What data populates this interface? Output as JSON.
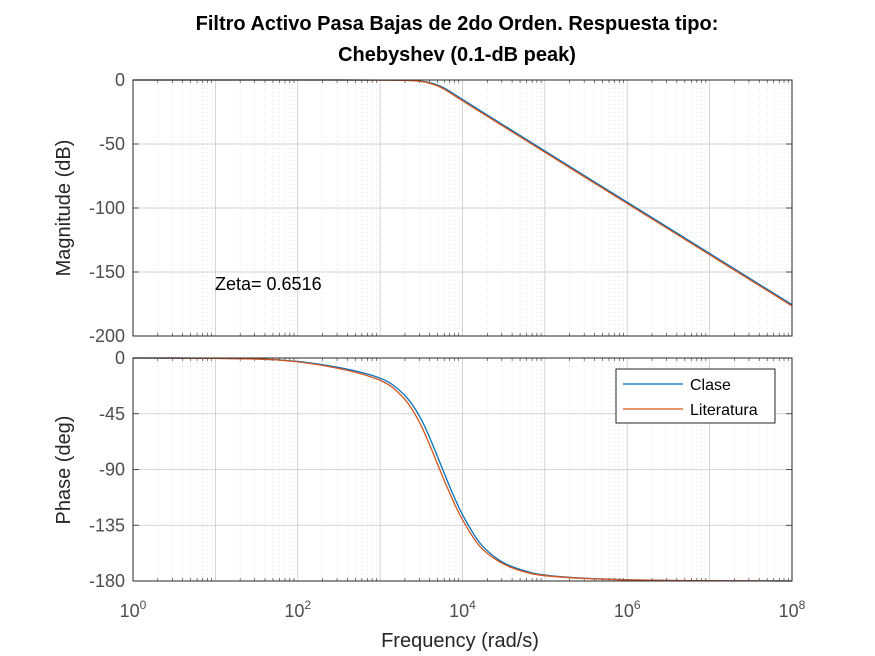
{
  "chart_data": [
    {
      "type": "line",
      "panel": "magnitude",
      "title_line1": "Filtro Activo Pasa Bajas de 2do Orden. Respuesta tipo:",
      "title_line2": "Chebyshev (0.1-dB peak)",
      "ylabel": "Magnitude (dB)",
      "xscale": "log",
      "xlim": [
        1,
        100000000
      ],
      "ylim": [
        -200,
        0
      ],
      "yticks": [
        0,
        -50,
        -100,
        -150,
        -200
      ],
      "grid": true,
      "annotation": "Zeta= 0.6516",
      "series": [
        {
          "name": "Clase",
          "color": "#0072BD",
          "x": [
            1,
            10,
            100,
            1000,
            3000,
            5000,
            7000,
            10000,
            100000,
            1000000,
            10000000,
            100000000
          ],
          "values": [
            0,
            0,
            0,
            0,
            -0.3,
            -3.5,
            -8.8,
            -15.2,
            -55.5,
            -95.5,
            -135.5,
            -175.5
          ]
        },
        {
          "name": "Literatura",
          "color": "#D95319",
          "x": [
            1,
            10,
            100,
            1000,
            3000,
            5000,
            7000,
            10000,
            100000,
            1000000,
            10000000,
            100000000
          ],
          "values": [
            0,
            0,
            0,
            0,
            -0.4,
            -4.2,
            -9.8,
            -16.3,
            -56.5,
            -96.5,
            -136.5,
            -176.5
          ]
        }
      ]
    },
    {
      "type": "line",
      "panel": "phase",
      "ylabel": "Phase (deg)",
      "xlabel": "Frequency  (rad/s)",
      "xscale": "log",
      "xlim": [
        1,
        100000000
      ],
      "ylim": [
        -180,
        0
      ],
      "yticks": [
        0,
        -45,
        -90,
        -135,
        -180
      ],
      "xticks_base": "10",
      "xticks_exp": [
        "0",
        "2",
        "4",
        "6",
        "8"
      ],
      "grid": true,
      "legend_position": "top-right",
      "series": [
        {
          "name": "Clase",
          "color": "#0072BD",
          "x": [
            1,
            10,
            100,
            1000,
            2000,
            3000,
            4000,
            5000,
            6000,
            7000,
            8000,
            10000,
            15000,
            20000,
            30000,
            50000,
            100000,
            1000000,
            100000000
          ],
          "values": [
            0,
            -0.1,
            -1.4,
            -14,
            -29,
            -46,
            -64,
            -80,
            -93,
            -104,
            -113,
            -127,
            -147,
            -156,
            -165,
            -171,
            -176,
            -179.6,
            -180
          ]
        },
        {
          "name": "Literatura",
          "color": "#D95319",
          "x": [
            1,
            10,
            100,
            1000,
            2000,
            3000,
            4000,
            5000,
            6000,
            7000,
            8000,
            10000,
            15000,
            20000,
            30000,
            50000,
            100000,
            1000000,
            100000000
          ],
          "values": [
            0,
            -0.1,
            -1.5,
            -15.5,
            -32,
            -51,
            -70,
            -86,
            -99,
            -109,
            -118,
            -131,
            -150,
            -158,
            -166,
            -172,
            -176.4,
            -179.6,
            -180
          ]
        }
      ]
    }
  ]
}
